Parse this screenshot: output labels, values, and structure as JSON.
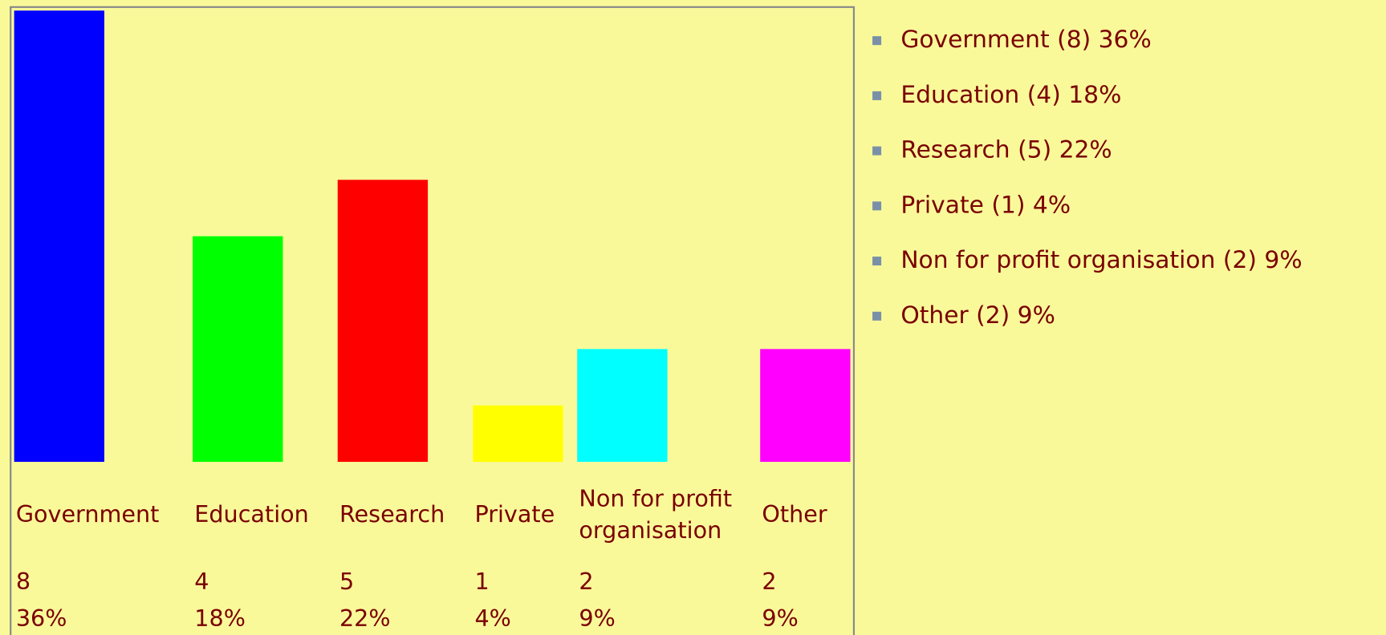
{
  "chart_data": {
    "type": "bar",
    "categories": [
      "Government",
      "Education",
      "Research",
      "Private",
      "Non for profit organisation",
      "Other"
    ],
    "values": [
      8,
      4,
      5,
      1,
      2,
      2
    ],
    "colors": [
      "#0000ff",
      "#00ff00",
      "#ff0000",
      "#ffff00",
      "#00ffff",
      "#ff00ff"
    ],
    "percentages": [
      36,
      18,
      22,
      4,
      9,
      9
    ],
    "percentage_labels": [
      "36%",
      "18%",
      "22%",
      "4%",
      "9%",
      "9%"
    ],
    "legend": [
      "Government (8) 36%",
      "Education (4) 18%",
      "Research (5) 22%",
      "Private (1) 4%",
      "Non for profit organisation (2) 9%",
      "Other (2) 9%"
    ]
  }
}
